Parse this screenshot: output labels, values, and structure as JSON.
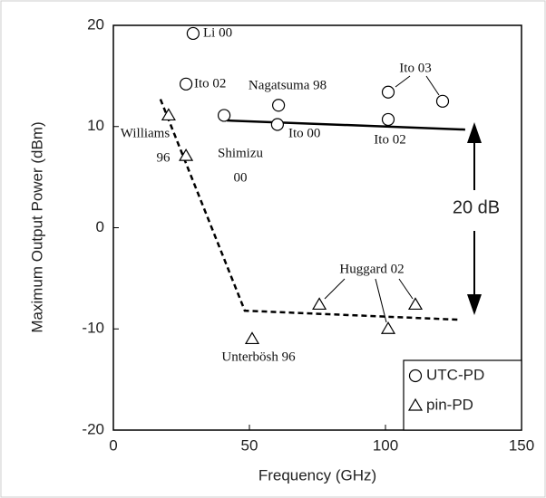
{
  "chart_data": {
    "type": "scatter",
    "x_label": "Frequency (GHz)",
    "y_label": "Maximum Output Power (dBm)",
    "xlim": [
      0,
      150
    ],
    "xticks": [
      0,
      50,
      100,
      150
    ],
    "ylim": [
      -20,
      20
    ],
    "yticks": [
      -20,
      -10,
      0,
      10,
      20
    ],
    "legend": "lower right",
    "series": [
      {
        "name": "UTC-PD",
        "marker": "circle",
        "color": "#000000",
        "x": [
          29.3,
          26.7,
          40.7,
          60.7,
          60.3,
          101,
          121,
          101
        ],
        "values": [
          19.2,
          14.2,
          11.1,
          12.1,
          10.2,
          13.4,
          12.5,
          10.7
        ]
      },
      {
        "name": "pin-PD",
        "marker": "triangle",
        "color": "#000000",
        "x": [
          20.3,
          26.7,
          51,
          75.7,
          101,
          111
        ],
        "values": [
          11.1,
          7.1,
          -11,
          -7.6,
          -10,
          -7.6
        ]
      }
    ],
    "lines": [
      {
        "style": "solid",
        "x": [
          41.7,
          129.3
        ],
        "values": [
          10.6,
          9.7
        ]
      },
      {
        "style": "dashed",
        "x": [
          17.3,
          48.3,
          127.7
        ],
        "values": [
          12.7,
          -8.2,
          -9.1
        ]
      }
    ],
    "annotations": [
      [
        "Li 00"
      ],
      [
        "Ito 02"
      ],
      [
        "Nagatsuma 98"
      ],
      [
        "Ito 00"
      ],
      [
        "Shimizu",
        "00"
      ],
      [
        "Williams",
        "96"
      ],
      [
        "Ito 03"
      ],
      [
        "Ito 02"
      ],
      [
        "Huggard 02"
      ],
      [
        "Unterbösh 96"
      ],
      [
        "20 dB"
      ]
    ]
  }
}
